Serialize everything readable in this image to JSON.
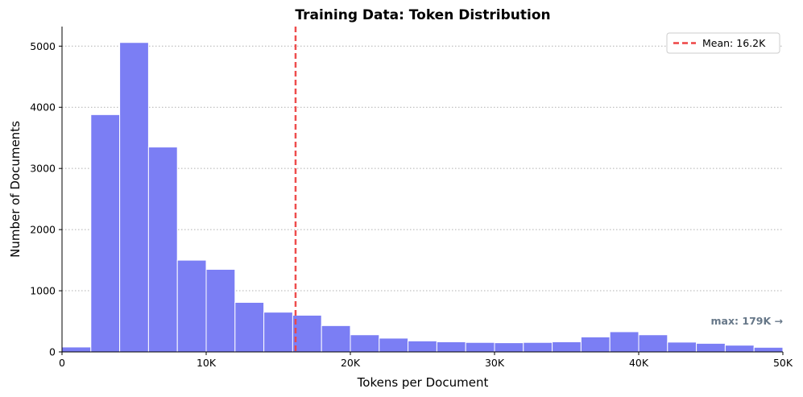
{
  "chart_data": {
    "type": "bar",
    "title": "Training Data: Token Distribution",
    "xlabel": "Tokens per Document",
    "ylabel": "Number of Documents",
    "xlim": [
      0,
      50000
    ],
    "ylim": [
      0,
      5320
    ],
    "x_ticks": [
      0,
      10000,
      20000,
      30000,
      40000,
      50000
    ],
    "x_tick_labels": [
      "0",
      "10K",
      "20K",
      "30K",
      "40K",
      "50K"
    ],
    "y_ticks": [
      0,
      1000,
      2000,
      3000,
      4000,
      5000
    ],
    "y_tick_labels": [
      "0",
      "1000",
      "2000",
      "3000",
      "4000",
      "5000"
    ],
    "grid": "y-dotted",
    "bin_width": 2000,
    "bins": [
      {
        "x0": 0,
        "x1": 2000,
        "count": 80
      },
      {
        "x0": 2000,
        "x1": 4000,
        "count": 3880
      },
      {
        "x0": 4000,
        "x1": 6000,
        "count": 5060
      },
      {
        "x0": 6000,
        "x1": 8000,
        "count": 3350
      },
      {
        "x0": 8000,
        "x1": 10000,
        "count": 1500
      },
      {
        "x0": 10000,
        "x1": 12000,
        "count": 1350
      },
      {
        "x0": 12000,
        "x1": 14000,
        "count": 810
      },
      {
        "x0": 14000,
        "x1": 16000,
        "count": 650
      },
      {
        "x0": 16000,
        "x1": 18000,
        "count": 600
      },
      {
        "x0": 18000,
        "x1": 20000,
        "count": 430
      },
      {
        "x0": 20000,
        "x1": 22000,
        "count": 280
      },
      {
        "x0": 22000,
        "x1": 24000,
        "count": 225
      },
      {
        "x0": 24000,
        "x1": 26000,
        "count": 180
      },
      {
        "x0": 26000,
        "x1": 28000,
        "count": 165
      },
      {
        "x0": 28000,
        "x1": 30000,
        "count": 155
      },
      {
        "x0": 30000,
        "x1": 32000,
        "count": 150
      },
      {
        "x0": 32000,
        "x1": 34000,
        "count": 155
      },
      {
        "x0": 34000,
        "x1": 36000,
        "count": 165
      },
      {
        "x0": 36000,
        "x1": 38000,
        "count": 245
      },
      {
        "x0": 38000,
        "x1": 40000,
        "count": 330
      },
      {
        "x0": 40000,
        "x1": 42000,
        "count": 280
      },
      {
        "x0": 42000,
        "x1": 44000,
        "count": 160
      },
      {
        "x0": 44000,
        "x1": 46000,
        "count": 140
      },
      {
        "x0": 46000,
        "x1": 48000,
        "count": 110
      },
      {
        "x0": 48000,
        "x1": 50000,
        "count": 75
      }
    ],
    "mean_line": {
      "x": 16200,
      "label": "Mean: 16.2K"
    },
    "annotation": {
      "text": "max: 179K →",
      "placement": "right, just above bars"
    },
    "legend": {
      "placement": "top-right",
      "entries": [
        "Mean: 16.2K"
      ]
    },
    "colors": {
      "bars": "#7b7ef4",
      "bar_edge": "#ffffff",
      "mean_line": "#ee4444",
      "annotation": "#667788",
      "grid": "#b0b0b0"
    }
  }
}
